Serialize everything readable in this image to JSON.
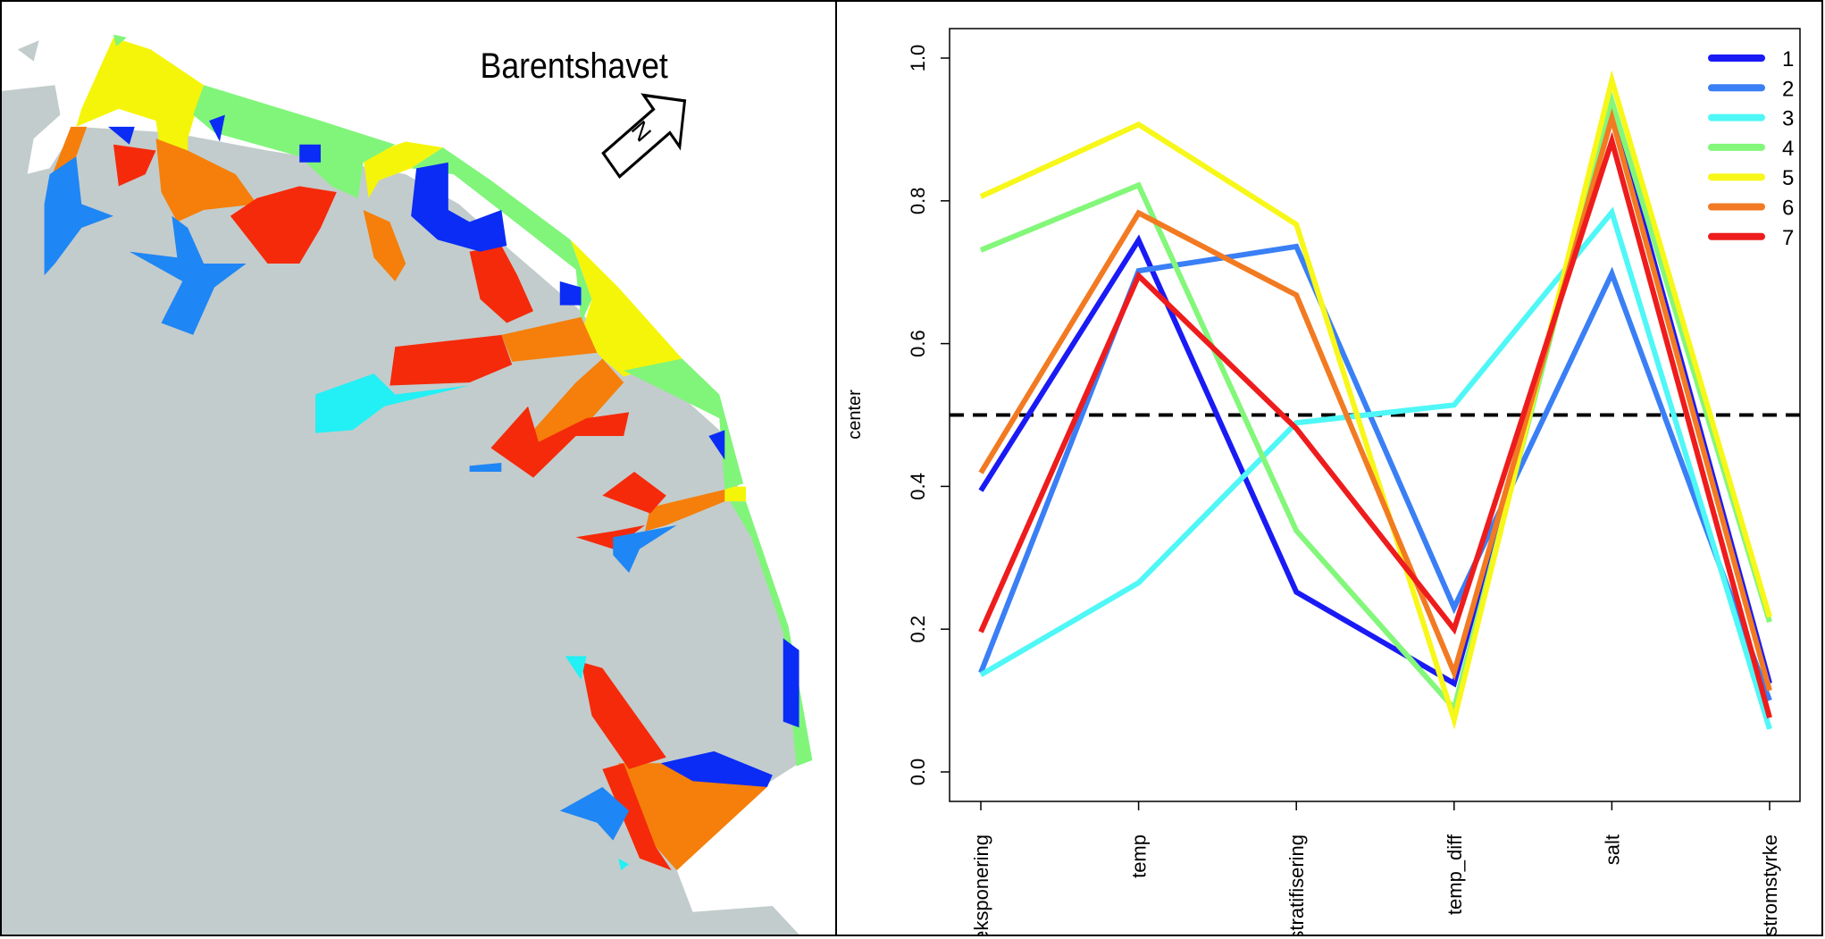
{
  "map": {
    "sea_label": "Barentshavet",
    "north_arrow_label": "N",
    "colors": {
      "land": "#c3cccc",
      "c1": "#0a2cf5",
      "c2": "#1f86f5",
      "c3": "#22f0f5",
      "c4": "#80f57a",
      "c5": "#f5f50a",
      "c6": "#f57f0a",
      "c7": "#f52a0a"
    }
  },
  "chart_data": {
    "type": "line",
    "title": "",
    "xlabel": "",
    "ylabel": "center",
    "categories": [
      "eksponering",
      "temp",
      "stratifisering",
      "temp_diff",
      "salt",
      "stromstyrke"
    ],
    "ylim": [
      0.0,
      1.0
    ],
    "yticks": [
      "0.0",
      "0.2",
      "0.4",
      "0.6",
      "0.8",
      "1.0"
    ],
    "grid": false,
    "legend_position": "top-right",
    "reference_line": {
      "y": 0.5,
      "style": "dashed",
      "color": "#000000"
    },
    "series": [
      {
        "name": "1",
        "color": "#1a1af5",
        "values": [
          0.394,
          0.745,
          0.252,
          0.124,
          0.93,
          0.124
        ]
      },
      {
        "name": "2",
        "color": "#3a7ff5",
        "values": [
          0.139,
          0.702,
          0.736,
          0.23,
          0.698,
          0.1
        ]
      },
      {
        "name": "3",
        "color": "#4ff7f7",
        "values": [
          0.136,
          0.265,
          0.489,
          0.514,
          0.784,
          0.06
        ]
      },
      {
        "name": "4",
        "color": "#83f77a",
        "values": [
          0.731,
          0.822,
          0.338,
          0.089,
          0.94,
          0.21
        ]
      },
      {
        "name": "5",
        "color": "#f7f71a",
        "values": [
          0.806,
          0.907,
          0.767,
          0.073,
          0.969,
          0.217
        ]
      },
      {
        "name": "6",
        "color": "#f27a22",
        "values": [
          0.419,
          0.783,
          0.668,
          0.139,
          0.916,
          0.114
        ]
      },
      {
        "name": "7",
        "color": "#ee1c1c",
        "values": [
          0.196,
          0.695,
          0.481,
          0.2,
          0.884,
          0.076
        ]
      }
    ]
  }
}
